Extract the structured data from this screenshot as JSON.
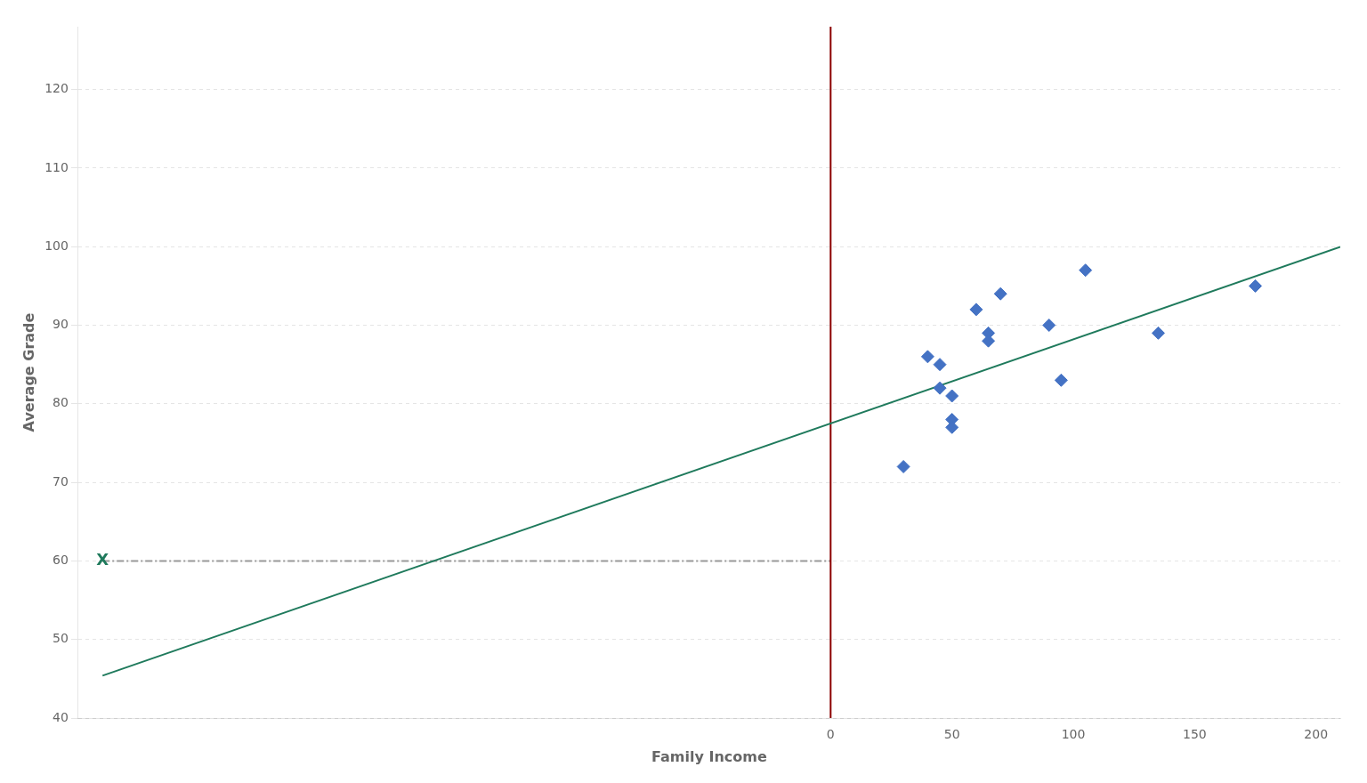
{
  "chart_data": {
    "type": "scatter",
    "xlabel": "Family Income",
    "ylabel": "Average Grade",
    "series": [
      {
        "type": "scatter",
        "color": "#4472C4",
        "marker": "diamond",
        "x": [
          30,
          40,
          45,
          45,
          50,
          50,
          50,
          60,
          65,
          65,
          70,
          90,
          95,
          105,
          135,
          175
        ],
        "values": [
          72,
          86,
          85,
          82,
          81,
          78,
          77,
          92,
          89,
          88,
          94,
          90,
          83,
          97,
          89,
          95
        ]
      },
      {
        "type": "line",
        "color": "#1F7A5C",
        "line_style": "solid",
        "x": [
          -300,
          210
        ],
        "values": [
          45.4,
          99.97
        ]
      },
      {
        "type": "line",
        "color": "#8B0000",
        "line_style": "solid",
        "x": [
          0,
          0
        ],
        "values": [
          40,
          128
        ]
      },
      {
        "type": "line",
        "color": "#999999",
        "line_style": "dashdot",
        "x": [
          -300,
          0
        ],
        "values": [
          60,
          60
        ]
      }
    ],
    "annotations": [
      {
        "text": "X",
        "x": -300,
        "y": 60,
        "color": "#1F7A5C"
      }
    ],
    "xlim": [
      -310,
      210
    ],
    "ylim": [
      40,
      128
    ],
    "xticks": [
      0,
      50,
      100,
      150,
      200
    ],
    "yticks": [
      40,
      50,
      60,
      70,
      80,
      90,
      100,
      110,
      120
    ],
    "grid": true
  }
}
